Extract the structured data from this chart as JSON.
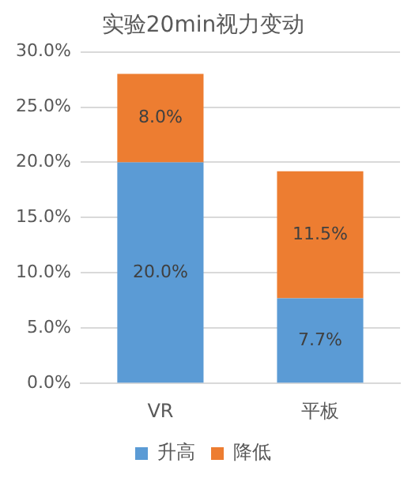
{
  "chart_data": {
    "type": "bar",
    "title": "实验20min视力变动",
    "categories": [
      "VR",
      "平板"
    ],
    "stacked": true,
    "series": [
      {
        "name": "升高",
        "color": "#5b9bd5",
        "values": [
          20.0,
          7.7
        ],
        "value_labels": [
          "20.0%",
          "7.7%"
        ]
      },
      {
        "name": "降低",
        "color": "#ed7d31",
        "values": [
          8.0,
          11.5
        ],
        "value_labels": [
          "8.0%",
          "11.5%"
        ]
      }
    ],
    "ylim": [
      0,
      30
    ],
    "yticks": [
      {
        "value": 0,
        "label": "0.0%"
      },
      {
        "value": 5,
        "label": "5.0%"
      },
      {
        "value": 10,
        "label": "10.0%"
      },
      {
        "value": 15,
        "label": "15.0%"
      },
      {
        "value": 20,
        "label": "20.0%"
      },
      {
        "value": 25,
        "label": "25.0%"
      },
      {
        "value": 30,
        "label": "30.0%"
      }
    ],
    "grid": "y",
    "legend": "bottom"
  }
}
